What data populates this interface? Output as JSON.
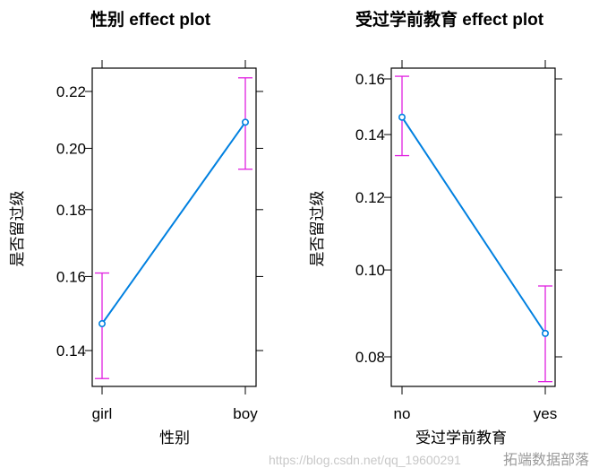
{
  "chart_data": [
    {
      "type": "line",
      "title": "性别 effect plot",
      "xlabel": "性别",
      "ylabel": "是否留过级",
      "y_scale": "logit",
      "categories": [
        "girl",
        "boy"
      ],
      "y_ticks": [
        0.14,
        0.16,
        0.18,
        0.2,
        0.22
      ],
      "y_tick_labels": [
        "0.14",
        "0.16",
        "0.18",
        "0.20",
        "0.22"
      ],
      "values": [
        0.147,
        0.209
      ],
      "lower": [
        0.133,
        0.193
      ],
      "upper": [
        0.161,
        0.225
      ],
      "grid": false
    },
    {
      "type": "line",
      "title": "受过学前教育 effect plot",
      "xlabel": "受过学前教育",
      "ylabel": "是否留过级",
      "y_scale": "logit",
      "categories": [
        "no",
        "yes"
      ],
      "y_ticks": [
        0.08,
        0.1,
        0.12,
        0.14,
        0.16
      ],
      "y_tick_labels": [
        "0.08",
        "0.10",
        "0.12",
        "0.14",
        "0.16"
      ],
      "values": [
        0.146,
        0.085
      ],
      "lower": [
        0.133,
        0.075
      ],
      "upper": [
        0.161,
        0.096
      ],
      "grid": false
    }
  ],
  "colors": {
    "line": "#0080e0",
    "ci": "#e020e0",
    "frame": "#000000"
  },
  "watermark": {
    "text": "拓端数据部落",
    "url": "https://blog.csdn.net/qq_19600291"
  }
}
